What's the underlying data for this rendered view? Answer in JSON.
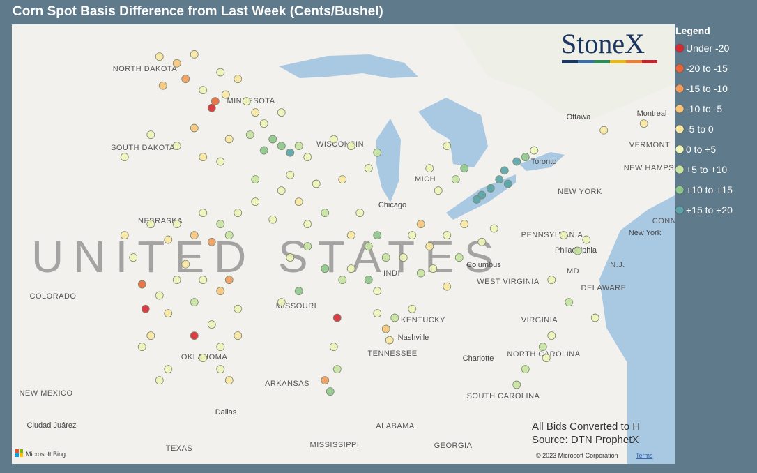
{
  "title": "Corn Spot Basis Difference from Last Week (Cents/Bushel)",
  "logo": "StoneX",
  "notes": [
    "All Bids Converted to H",
    "Source: DTN ProphetX"
  ],
  "attribution": {
    "provider": "Microsoft Bing",
    "copyright": "© 2023 Microsoft Corporation",
    "terms": "Terms"
  },
  "legend": {
    "title": "Legend",
    "items": [
      {
        "label": "Under -20",
        "color": "#d42a33"
      },
      {
        "label": "-20 to -15",
        "color": "#e8673a"
      },
      {
        "label": "-15 to -10",
        "color": "#f09a5c"
      },
      {
        "label": "-10 to -5",
        "color": "#f6c47a"
      },
      {
        "label": "-5 to 0",
        "color": "#fbe6a2"
      },
      {
        "label": "0 to +5",
        "color": "#eef3b8"
      },
      {
        "label": "+5 to +10",
        "color": "#c6e3a0"
      },
      {
        "label": "+10 to +15",
        "color": "#8ec58c"
      },
      {
        "label": "+15 to +20",
        "color": "#5ba3a8"
      }
    ]
  },
  "map": {
    "labels": [
      "UNITED STATES",
      "NORTH DAKOTA",
      "MINNESOTA",
      "SOUTH DAKOTA",
      "WISCONSIN",
      "MICH",
      "Chicago",
      "NEBRASKA",
      "COLORADO",
      "MISSOURI",
      "KENTUCKY",
      "OKLAHOMA",
      "ARKANSAS",
      "TENNESSEE",
      "Nashville",
      "NEW MEXICO",
      "Dallas",
      "TEXAS",
      "MISSISSIPPI",
      "ALABAMA",
      "GEORGIA",
      "SOUTH CAROLINA",
      "NORTH CAROLINA",
      "Charlotte",
      "VIRGINIA",
      "WEST VIRGINIA",
      "Columbus",
      "PENNSYLVANIA",
      "Philadelphia",
      "NEW YORK",
      "New York",
      "Toronto",
      "Ottawa",
      "Montreal",
      "VERMONT",
      "NEW HAMPSHIRE",
      "MD",
      "DELAWARE",
      "N.J.",
      "Ciudad Juárez",
      "INDI",
      "CONN"
    ],
    "points": [
      [
        -101,
        48.5,
        4
      ],
      [
        -100,
        48.2,
        3
      ],
      [
        -99.5,
        47.5,
        2
      ],
      [
        -98.5,
        47,
        5
      ],
      [
        -97.5,
        47.8,
        5
      ],
      [
        -97.2,
        46.8,
        4
      ],
      [
        -98,
        46.2,
        0
      ],
      [
        -97.8,
        46.5,
        1
      ],
      [
        -100.8,
        47.2,
        3
      ],
      [
        -99,
        48.6,
        4
      ],
      [
        -96.5,
        47.5,
        4
      ],
      [
        -96,
        46.5,
        5
      ],
      [
        -95.5,
        46,
        4
      ],
      [
        -95,
        45.5,
        5
      ],
      [
        -94.5,
        44.8,
        7
      ],
      [
        -94,
        44.5,
        7
      ],
      [
        -93.5,
        44.2,
        8
      ],
      [
        -95,
        44.3,
        7
      ],
      [
        -93,
        44.5,
        6
      ],
      [
        -92.5,
        44,
        5
      ],
      [
        -94,
        46,
        5
      ],
      [
        -95.8,
        45,
        6
      ],
      [
        -100,
        44.5,
        5
      ],
      [
        -98.5,
        44,
        4
      ],
      [
        -97.5,
        43.8,
        5
      ],
      [
        -97,
        44.8,
        4
      ],
      [
        -99,
        45.3,
        3
      ],
      [
        -101.5,
        45,
        5
      ],
      [
        -103,
        44,
        5
      ],
      [
        -100,
        41,
        5
      ],
      [
        -98.5,
        41.5,
        5
      ],
      [
        -97.5,
        41,
        6
      ],
      [
        -96.5,
        41.5,
        5
      ],
      [
        -99,
        40.5,
        3
      ],
      [
        -98,
        40.2,
        2
      ],
      [
        -101.5,
        41,
        5
      ],
      [
        -97,
        40.5,
        6
      ],
      [
        -100.5,
        40.3,
        4
      ],
      [
        -100,
        38.5,
        5
      ],
      [
        -98.5,
        38.5,
        5
      ],
      [
        -97.5,
        38,
        3
      ],
      [
        -97,
        38.5,
        2
      ],
      [
        -99,
        37.5,
        6
      ],
      [
        -101,
        37.8,
        5
      ],
      [
        -96.5,
        37.2,
        5
      ],
      [
        -100.5,
        37,
        4
      ],
      [
        -102,
        38.3,
        1
      ],
      [
        -101.8,
        37.2,
        0
      ],
      [
        -99.5,
        39.2,
        4
      ],
      [
        -102.5,
        39.5,
        5
      ],
      [
        -103,
        40.5,
        4
      ],
      [
        -95.5,
        42,
        5
      ],
      [
        -94,
        42.5,
        5
      ],
      [
        -93,
        42,
        4
      ],
      [
        -92,
        42.8,
        5
      ],
      [
        -91.5,
        41.5,
        6
      ],
      [
        -94.5,
        41.2,
        5
      ],
      [
        -92.5,
        41,
        5
      ],
      [
        -95.5,
        43,
        6
      ],
      [
        -93.5,
        43.2,
        5
      ],
      [
        -90,
        44.5,
        5
      ],
      [
        -89,
        43.5,
        5
      ],
      [
        -90.5,
        43,
        4
      ],
      [
        -88.5,
        44.2,
        6
      ],
      [
        -91,
        44.8,
        5
      ],
      [
        -89.5,
        41.5,
        5
      ],
      [
        -88.5,
        40.5,
        7
      ],
      [
        -89,
        40,
        6
      ],
      [
        -88,
        39.5,
        6
      ],
      [
        -90,
        39,
        5
      ],
      [
        -89,
        38.5,
        7
      ],
      [
        -88.5,
        38,
        5
      ],
      [
        -90,
        40.5,
        4
      ],
      [
        -86.5,
        40.5,
        5
      ],
      [
        -85.5,
        40,
        4
      ],
      [
        -87,
        39.5,
        5
      ],
      [
        -86,
        41,
        3
      ],
      [
        -85.3,
        39,
        5
      ],
      [
        -84.5,
        40.5,
        5
      ],
      [
        -83.5,
        41,
        4
      ],
      [
        -82.5,
        40.2,
        5
      ],
      [
        -83.8,
        39.5,
        6
      ],
      [
        -81.8,
        40.8,
        5
      ],
      [
        -85,
        42.5,
        5
      ],
      [
        -84,
        43,
        6
      ],
      [
        -83.5,
        43.5,
        7
      ],
      [
        -85.5,
        43.5,
        5
      ],
      [
        -84.5,
        44.5,
        5
      ],
      [
        -82.5,
        42.3,
        8
      ],
      [
        -82,
        42.6,
        8
      ],
      [
        -81.5,
        43,
        8
      ],
      [
        -81.2,
        43.4,
        8
      ],
      [
        -81,
        42.8,
        8
      ],
      [
        -80.5,
        43.8,
        8
      ],
      [
        -82.8,
        42.1,
        8
      ],
      [
        -80,
        44,
        7
      ],
      [
        -79.5,
        44.3,
        5
      ],
      [
        -75.5,
        45.2,
        4
      ],
      [
        -93.5,
        39.5,
        5
      ],
      [
        -92.5,
        40,
        6
      ],
      [
        -91.5,
        39,
        7
      ],
      [
        -90.5,
        38.5,
        6
      ],
      [
        -93,
        38,
        7
      ],
      [
        -94,
        37.5,
        5
      ],
      [
        -90.8,
        36.8,
        0
      ],
      [
        -88.5,
        37,
        5
      ],
      [
        -87.5,
        36.8,
        6
      ],
      [
        -86.5,
        37.2,
        5
      ],
      [
        -88,
        36.3,
        3
      ],
      [
        -87.8,
        35.8,
        4
      ],
      [
        -91,
        35.5,
        5
      ],
      [
        -90.8,
        34.5,
        6
      ],
      [
        -91.5,
        34,
        2
      ],
      [
        -91.2,
        33.5,
        7
      ],
      [
        -98,
        36.5,
        5
      ],
      [
        -97.5,
        35.5,
        5
      ],
      [
        -98.5,
        35,
        5
      ],
      [
        -99,
        36,
        0
      ],
      [
        -96.5,
        36,
        4
      ],
      [
        -97.5,
        34.5,
        5
      ],
      [
        -101.5,
        36,
        4
      ],
      [
        -102,
        35.5,
        5
      ],
      [
        -100.5,
        34.5,
        5
      ],
      [
        -101,
        34,
        5
      ],
      [
        -97,
        34,
        4
      ],
      [
        -77,
        39.8,
        6
      ],
      [
        -76.5,
        40.3,
        5
      ],
      [
        -77.8,
        40.5,
        5
      ],
      [
        -78.5,
        38.5,
        5
      ],
      [
        -77.5,
        37.5,
        6
      ],
      [
        -78.5,
        36,
        5
      ],
      [
        -79,
        35.5,
        6
      ],
      [
        -78.8,
        35,
        5
      ],
      [
        -80,
        34.5,
        6
      ],
      [
        -76,
        36.8,
        5
      ],
      [
        -80.5,
        33.8,
        6
      ],
      [
        -84.5,
        38.2,
        4
      ],
      [
        -86,
        38.8,
        6
      ],
      [
        -73.2,
        45.5,
        4
      ]
    ]
  }
}
